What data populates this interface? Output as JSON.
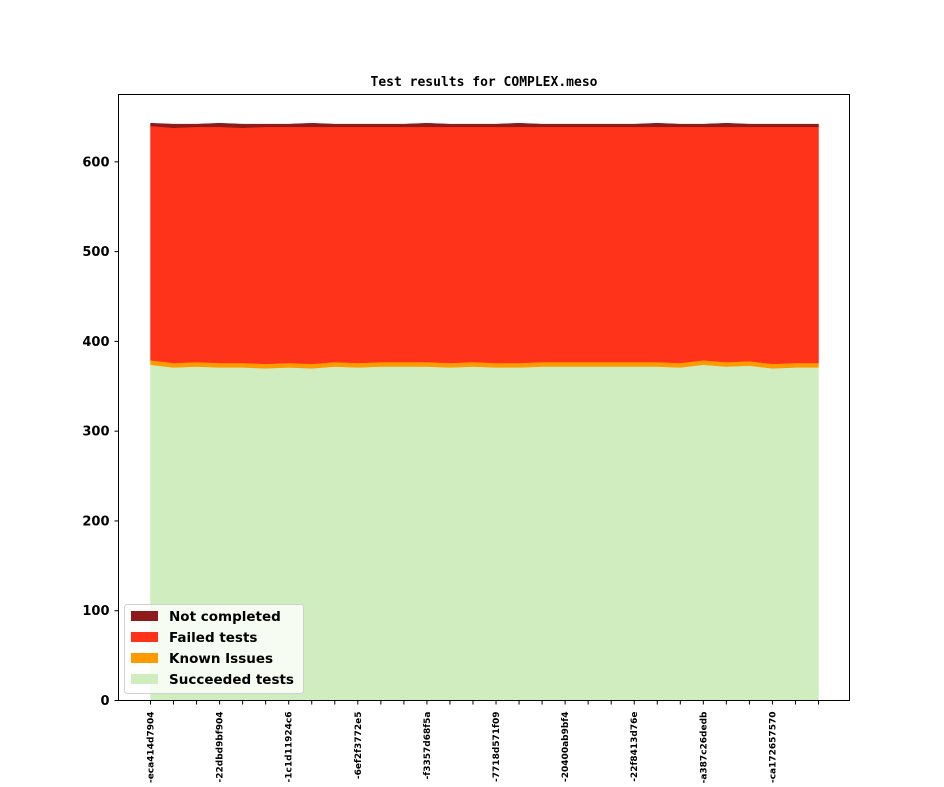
{
  "chart_data": {
    "type": "area",
    "stacked": true,
    "title": "Test results for COMPLEX.meso",
    "xlabel": "",
    "ylabel": "",
    "ylim": [
      0,
      675
    ],
    "yticks": [
      0,
      100,
      200,
      300,
      400,
      500,
      600
    ],
    "x_count": 30,
    "x_tick_labels": [
      {
        "index": 0,
        "label": "-eca414d7904"
      },
      {
        "index": 3,
        "label": "-22dbd9bf904"
      },
      {
        "index": 6,
        "label": "-1c1d11924c6"
      },
      {
        "index": 9,
        "label": "-6ef2f3772e5"
      },
      {
        "index": 12,
        "label": "-f3357d68f5a"
      },
      {
        "index": 15,
        "label": "-7718d571f09"
      },
      {
        "index": 18,
        "label": "-20400ab9bf4"
      },
      {
        "index": 21,
        "label": "-22f8413d76e"
      },
      {
        "index": 24,
        "label": "-a387c26dedb"
      },
      {
        "index": 27,
        "label": "-ca172657570"
      }
    ],
    "legend_position": "lower-left",
    "grid": false,
    "series": [
      {
        "name": "Succeeded tests",
        "color": "#cfedbf",
        "values": [
          374,
          371,
          372,
          371,
          371,
          370,
          371,
          370,
          372,
          371,
          372,
          372,
          372,
          371,
          372,
          371,
          371,
          372,
          372,
          372,
          372,
          372,
          372,
          371,
          374,
          372,
          373,
          370,
          371,
          371
        ]
      },
      {
        "name": "Known Issues",
        "color": "#ff9a00",
        "values": [
          5,
          5,
          5,
          5,
          5,
          5,
          5,
          5,
          5,
          5,
          5,
          5,
          5,
          5,
          5,
          5,
          5,
          5,
          5,
          5,
          5,
          5,
          5,
          5,
          5,
          5,
          5,
          5,
          5,
          5
        ]
      },
      {
        "name": "Failed tests",
        "color": "#ff3319",
        "values": [
          261,
          262,
          262,
          263,
          262,
          264,
          263,
          264,
          262,
          263,
          262,
          262,
          262,
          263,
          262,
          263,
          263,
          262,
          262,
          262,
          262,
          262,
          262,
          263,
          260,
          262,
          261,
          264,
          263,
          263
        ]
      },
      {
        "name": "Not completed",
        "color": "#8e1a1a",
        "values": [
          3,
          4,
          3,
          4,
          4,
          3,
          3,
          4,
          3,
          3,
          3,
          3,
          4,
          3,
          3,
          3,
          4,
          3,
          3,
          3,
          3,
          3,
          4,
          3,
          3,
          4,
          3,
          3,
          3,
          3
        ]
      }
    ]
  }
}
